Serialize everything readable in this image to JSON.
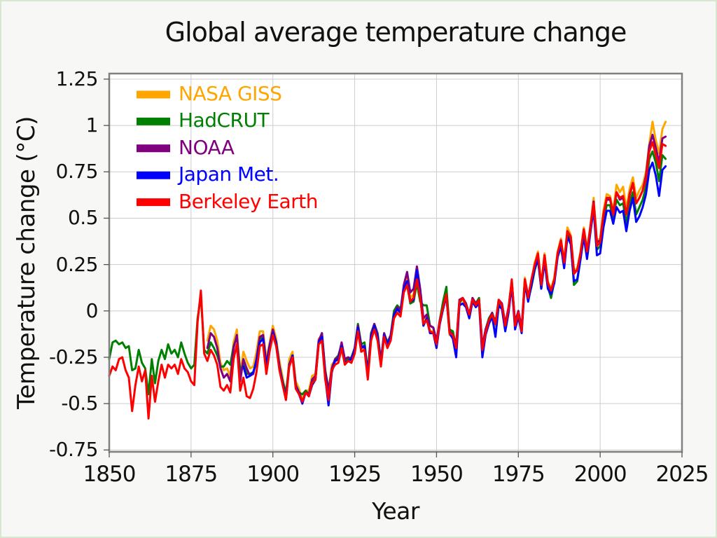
{
  "title": "Global average temperature change",
  "colors": {
    "background": "#f7f7f5",
    "plot_background": "#ffffff",
    "plot_border": "#808080",
    "gridline": "#cccccc",
    "tick_mark": "#555555",
    "text": "#111111",
    "page_frame": "#d9e7d2"
  },
  "chart_data": {
    "type": "line",
    "title": "Global average temperature change",
    "xlabel": "Year",
    "ylabel": "Temperature change (°C)",
    "xlim": [
      1850,
      2025
    ],
    "ylim": [
      -0.76,
      1.28
    ],
    "grid": true,
    "legend_position": "top-left",
    "xticks": [
      1850,
      1875,
      1900,
      1925,
      1950,
      1975,
      2000,
      2025
    ],
    "xtick_labels": [
      "1850",
      "1875",
      "1900",
      "1925",
      "1950",
      "1975",
      "2000",
      "2025"
    ],
    "yticks": [
      1.25,
      1,
      0.75,
      0.5,
      0.25,
      0,
      -0.25,
      -0.5,
      -0.75
    ],
    "ytick_labels": [
      "1.25",
      "1",
      "0.75",
      "0.5",
      "0.25",
      "0",
      "-0.25",
      "-0.5",
      "-0.75"
    ],
    "line_width": 3,
    "series": [
      {
        "name": "NASA GISS",
        "color": "#FFA500",
        "start_year": 1880,
        "end_year": 2020,
        "values": [
          -0.16,
          -0.08,
          -0.1,
          -0.16,
          -0.28,
          -0.32,
          -0.31,
          -0.35,
          -0.17,
          -0.1,
          -0.35,
          -0.22,
          -0.27,
          -0.31,
          -0.3,
          -0.22,
          -0.11,
          -0.11,
          -0.26,
          -0.17,
          -0.08,
          -0.15,
          -0.27,
          -0.36,
          -0.46,
          -0.26,
          -0.22,
          -0.38,
          -0.42,
          -0.48,
          -0.43,
          -0.43,
          -0.35,
          -0.34,
          -0.15,
          -0.14,
          -0.35,
          -0.45,
          -0.29,
          -0.27,
          -0.27,
          -0.18,
          -0.28,
          -0.26,
          -0.27,
          -0.22,
          -0.1,
          -0.21,
          -0.2,
          -0.36,
          -0.16,
          -0.09,
          -0.16,
          -0.29,
          -0.13,
          -0.2,
          -0.15,
          -0.03,
          0.0,
          -0.02,
          0.13,
          0.19,
          0.07,
          0.09,
          0.2,
          0.09,
          -0.07,
          -0.03,
          -0.11,
          -0.11,
          -0.17,
          -0.07,
          0.01,
          0.08,
          -0.13,
          -0.14,
          -0.19,
          0.05,
          0.06,
          0.03,
          -0.03,
          0.06,
          0.03,
          0.05,
          -0.2,
          -0.11,
          -0.06,
          -0.02,
          -0.08,
          0.05,
          0.03,
          -0.08,
          0.01,
          0.16,
          -0.07,
          -0.01,
          -0.1,
          0.18,
          0.07,
          0.16,
          0.26,
          0.32,
          0.14,
          0.31,
          0.16,
          0.12,
          0.18,
          0.32,
          0.39,
          0.27,
          0.45,
          0.41,
          0.22,
          0.23,
          0.32,
          0.45,
          0.33,
          0.46,
          0.61,
          0.38,
          0.39,
          0.54,
          0.63,
          0.62,
          0.54,
          0.68,
          0.64,
          0.67,
          0.55,
          0.66,
          0.72,
          0.61,
          0.65,
          0.68,
          0.75,
          0.9,
          1.02,
          0.92,
          0.85,
          0.98,
          1.02
        ]
      },
      {
        "name": "HadCRUT",
        "color": "#008000",
        "start_year": 1850,
        "end_year": 2020,
        "values": [
          -0.26,
          -0.17,
          -0.16,
          -0.18,
          -0.17,
          -0.2,
          -0.19,
          -0.32,
          -0.31,
          -0.21,
          -0.28,
          -0.31,
          -0.45,
          -0.26,
          -0.39,
          -0.27,
          -0.21,
          -0.26,
          -0.18,
          -0.23,
          -0.21,
          -0.25,
          -0.17,
          -0.23,
          -0.28,
          -0.31,
          -0.29,
          -0.04,
          0.08,
          -0.21,
          -0.23,
          -0.17,
          -0.2,
          -0.24,
          -0.3,
          -0.3,
          -0.27,
          -0.29,
          -0.19,
          -0.14,
          -0.32,
          -0.29,
          -0.34,
          -0.34,
          -0.33,
          -0.28,
          -0.15,
          -0.14,
          -0.3,
          -0.21,
          -0.12,
          -0.17,
          -0.3,
          -0.38,
          -0.44,
          -0.3,
          -0.24,
          -0.4,
          -0.44,
          -0.45,
          -0.43,
          -0.45,
          -0.38,
          -0.37,
          -0.17,
          -0.12,
          -0.32,
          -0.42,
          -0.33,
          -0.26,
          -0.24,
          -0.18,
          -0.27,
          -0.26,
          -0.25,
          -0.2,
          -0.07,
          -0.18,
          -0.17,
          -0.33,
          -0.12,
          -0.07,
          -0.12,
          -0.27,
          -0.12,
          -0.17,
          -0.13,
          0.0,
          0.03,
          0.01,
          0.11,
          0.14,
          0.04,
          0.05,
          0.15,
          0.05,
          0.03,
          0.03,
          -0.08,
          -0.09,
          -0.17,
          -0.05,
          0.05,
          0.13,
          -0.1,
          -0.11,
          -0.2,
          0.04,
          0.07,
          0.04,
          -0.02,
          0.06,
          0.04,
          0.07,
          -0.2,
          -0.1,
          -0.04,
          -0.01,
          -0.06,
          0.04,
          0.03,
          -0.09,
          0.0,
          0.15,
          -0.07,
          -0.02,
          -0.11,
          0.16,
          0.06,
          0.13,
          0.22,
          0.28,
          0.12,
          0.28,
          0.13,
          0.07,
          0.16,
          0.3,
          0.35,
          0.24,
          0.42,
          0.38,
          0.14,
          0.16,
          0.28,
          0.42,
          0.3,
          0.43,
          0.58,
          0.33,
          0.35,
          0.49,
          0.57,
          0.57,
          0.5,
          0.6,
          0.57,
          0.58,
          0.47,
          0.58,
          0.64,
          0.52,
          0.56,
          0.6,
          0.67,
          0.82,
          0.86,
          0.8,
          0.7,
          0.84,
          0.82
        ]
      },
      {
        "name": "NOAA",
        "color": "#800080",
        "start_year": 1880,
        "end_year": 2020,
        "values": [
          -0.2,
          -0.12,
          -0.14,
          -0.2,
          -0.31,
          -0.36,
          -0.34,
          -0.38,
          -0.2,
          -0.13,
          -0.38,
          -0.26,
          -0.31,
          -0.35,
          -0.34,
          -0.26,
          -0.14,
          -0.13,
          -0.29,
          -0.19,
          -0.1,
          -0.17,
          -0.3,
          -0.39,
          -0.48,
          -0.29,
          -0.24,
          -0.4,
          -0.44,
          -0.49,
          -0.44,
          -0.45,
          -0.37,
          -0.35,
          -0.16,
          -0.12,
          -0.33,
          -0.43,
          -0.31,
          -0.26,
          -0.25,
          -0.17,
          -0.26,
          -0.25,
          -0.26,
          -0.2,
          -0.08,
          -0.19,
          -0.19,
          -0.34,
          -0.13,
          -0.07,
          -0.13,
          -0.27,
          -0.12,
          -0.18,
          -0.13,
          -0.02,
          0.02,
          0.0,
          0.14,
          0.21,
          0.1,
          0.12,
          0.24,
          0.12,
          -0.04,
          -0.02,
          -0.08,
          -0.09,
          -0.16,
          -0.05,
          0.02,
          0.09,
          -0.11,
          -0.13,
          -0.18,
          0.06,
          0.07,
          0.04,
          -0.02,
          0.07,
          0.04,
          0.06,
          -0.19,
          -0.1,
          -0.05,
          -0.01,
          -0.07,
          0.06,
          0.04,
          -0.07,
          0.02,
          0.16,
          -0.06,
          0.0,
          -0.09,
          0.17,
          0.08,
          0.16,
          0.25,
          0.3,
          0.13,
          0.3,
          0.15,
          0.11,
          0.17,
          0.31,
          0.38,
          0.26,
          0.43,
          0.4,
          0.21,
          0.22,
          0.31,
          0.44,
          0.32,
          0.45,
          0.59,
          0.37,
          0.38,
          0.52,
          0.6,
          0.6,
          0.53,
          0.64,
          0.6,
          0.61,
          0.52,
          0.63,
          0.69,
          0.58,
          0.61,
          0.65,
          0.73,
          0.89,
          0.95,
          0.88,
          0.8,
          0.93,
          0.94
        ]
      },
      {
        "name": "Japan Met.",
        "color": "#0000FF",
        "start_year": 1891,
        "end_year": 2020,
        "values": [
          -0.3,
          -0.36,
          -0.35,
          -0.33,
          -0.27,
          -0.17,
          -0.15,
          -0.29,
          -0.19,
          -0.12,
          -0.17,
          -0.3,
          -0.39,
          -0.47,
          -0.29,
          -0.24,
          -0.41,
          -0.45,
          -0.5,
          -0.44,
          -0.46,
          -0.4,
          -0.37,
          -0.17,
          -0.14,
          -0.36,
          -0.51,
          -0.33,
          -0.27,
          -0.26,
          -0.19,
          -0.28,
          -0.27,
          -0.26,
          -0.21,
          -0.09,
          -0.2,
          -0.19,
          -0.35,
          -0.14,
          -0.08,
          -0.14,
          -0.29,
          -0.13,
          -0.18,
          -0.14,
          -0.02,
          0.01,
          -0.01,
          0.12,
          0.16,
          0.05,
          0.06,
          0.22,
          0.08,
          -0.08,
          -0.04,
          -0.12,
          -0.12,
          -0.2,
          -0.07,
          0.01,
          0.08,
          -0.12,
          -0.15,
          -0.25,
          0.03,
          0.04,
          0.02,
          -0.04,
          0.05,
          0.02,
          0.04,
          -0.25,
          -0.13,
          -0.07,
          -0.03,
          -0.14,
          0.03,
          0.01,
          -0.11,
          -0.01,
          0.14,
          -0.1,
          -0.03,
          -0.12,
          0.15,
          0.05,
          0.14,
          0.23,
          0.28,
          0.12,
          0.27,
          0.12,
          0.09,
          0.15,
          0.29,
          0.35,
          0.23,
          0.4,
          0.36,
          0.16,
          0.17,
          0.28,
          0.4,
          0.28,
          0.42,
          0.55,
          0.3,
          0.31,
          0.45,
          0.54,
          0.54,
          0.47,
          0.56,
          0.53,
          0.54,
          0.43,
          0.54,
          0.61,
          0.48,
          0.51,
          0.56,
          0.63,
          0.76,
          0.8,
          0.73,
          0.62,
          0.76,
          0.78
        ]
      },
      {
        "name": "Berkeley Earth",
        "color": "#FF0000",
        "start_year": 1850,
        "end_year": 2020,
        "values": [
          -0.35,
          -0.3,
          -0.32,
          -0.26,
          -0.25,
          -0.32,
          -0.36,
          -0.54,
          -0.4,
          -0.3,
          -0.38,
          -0.32,
          -0.58,
          -0.35,
          -0.49,
          -0.38,
          -0.29,
          -0.36,
          -0.29,
          -0.31,
          -0.29,
          -0.34,
          -0.26,
          -0.31,
          -0.33,
          -0.38,
          -0.4,
          -0.06,
          0.11,
          -0.23,
          -0.27,
          -0.21,
          -0.24,
          -0.29,
          -0.41,
          -0.43,
          -0.4,
          -0.44,
          -0.26,
          -0.18,
          -0.43,
          -0.36,
          -0.46,
          -0.47,
          -0.42,
          -0.33,
          -0.19,
          -0.18,
          -0.34,
          -0.22,
          -0.13,
          -0.19,
          -0.32,
          -0.4,
          -0.48,
          -0.3,
          -0.25,
          -0.42,
          -0.45,
          -0.49,
          -0.44,
          -0.46,
          -0.39,
          -0.37,
          -0.18,
          -0.16,
          -0.37,
          -0.48,
          -0.32,
          -0.29,
          -0.28,
          -0.2,
          -0.29,
          -0.27,
          -0.28,
          -0.23,
          -0.11,
          -0.22,
          -0.21,
          -0.37,
          -0.16,
          -0.1,
          -0.16,
          -0.3,
          -0.14,
          -0.2,
          -0.16,
          -0.04,
          -0.01,
          -0.03,
          0.1,
          0.14,
          0.05,
          0.07,
          0.17,
          0.07,
          -0.07,
          -0.05,
          -0.11,
          -0.12,
          -0.18,
          -0.06,
          0.02,
          0.09,
          -0.12,
          -0.13,
          -0.2,
          0.05,
          0.07,
          0.03,
          -0.02,
          0.06,
          0.03,
          0.06,
          -0.21,
          -0.12,
          -0.05,
          -0.02,
          -0.07,
          0.06,
          0.03,
          -0.08,
          0.01,
          0.17,
          -0.08,
          -0.01,
          -0.11,
          0.17,
          0.07,
          0.17,
          0.25,
          0.31,
          0.14,
          0.3,
          0.15,
          0.11,
          0.17,
          0.31,
          0.38,
          0.26,
          0.43,
          0.4,
          0.2,
          0.22,
          0.31,
          0.44,
          0.32,
          0.44,
          0.58,
          0.35,
          0.37,
          0.52,
          0.61,
          0.61,
          0.52,
          0.64,
          0.61,
          0.62,
          0.52,
          0.62,
          0.69,
          0.58,
          0.61,
          0.65,
          0.71,
          0.86,
          0.91,
          0.84,
          0.77,
          0.9,
          0.89
        ]
      }
    ]
  }
}
